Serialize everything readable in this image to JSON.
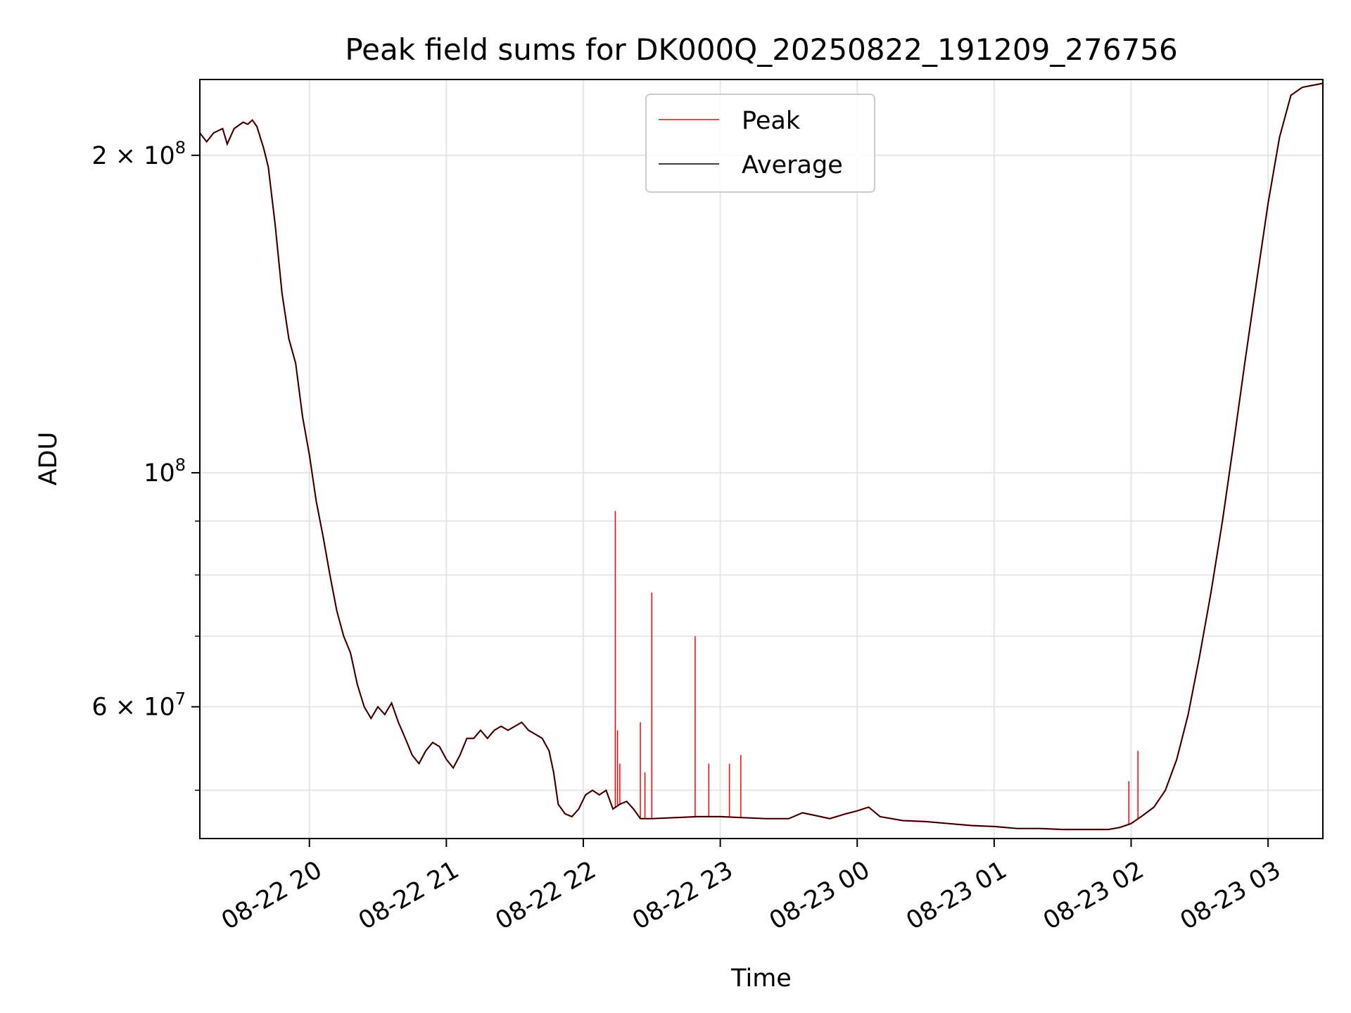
{
  "chart_data": {
    "type": "line",
    "title": "Peak field sums for DK000Q_20250822_191209_276756",
    "xlabel": "Time",
    "ylabel": "ADU",
    "yscale": "log",
    "xlim": [
      "2025-08-22 19:12",
      "2025-08-23 03:24"
    ],
    "ylim": [
      45000000,
      236000000
    ],
    "grid": true,
    "legend_position": "top-center",
    "x_ticks": [
      {
        "label": "08-22 20",
        "t": "2025-08-22 20:00"
      },
      {
        "label": "08-22 21",
        "t": "2025-08-22 21:00"
      },
      {
        "label": "08-22 22",
        "t": "2025-08-22 22:00"
      },
      {
        "label": "08-22 23",
        "t": "2025-08-22 23:00"
      },
      {
        "label": "08-23 00",
        "t": "2025-08-23 00:00"
      },
      {
        "label": "08-23 01",
        "t": "2025-08-23 01:00"
      },
      {
        "label": "08-23 02",
        "t": "2025-08-23 02:00"
      },
      {
        "label": "08-23 03",
        "t": "2025-08-23 03:00"
      }
    ],
    "y_major_ticks": [
      {
        "value": 200000000,
        "mantissa": "2 × 10",
        "exp": "8"
      },
      {
        "value": 100000000,
        "mantissa": "10",
        "exp": "8"
      },
      {
        "value": 60000000,
        "mantissa": "6 × 10",
        "exp": "7"
      }
    ],
    "y_minor_ticks": [
      50000000,
      70000000,
      80000000,
      90000000
    ],
    "series": [
      {
        "name": "Peak",
        "color": "#ff0000",
        "base": "Average",
        "spikes": [
          {
            "t": "2025-08-22 22:14",
            "y": 92000000
          },
          {
            "t": "2025-08-22 22:15",
            "y": 57000000
          },
          {
            "t": "2025-08-22 22:16",
            "y": 53000000
          },
          {
            "t": "2025-08-22 22:25",
            "y": 58000000
          },
          {
            "t": "2025-08-22 22:27",
            "y": 52000000
          },
          {
            "t": "2025-08-22 22:30",
            "y": 77000000
          },
          {
            "t": "2025-08-22 22:49",
            "y": 70000000
          },
          {
            "t": "2025-08-22 22:55",
            "y": 53000000
          },
          {
            "t": "2025-08-22 23:04",
            "y": 53000000
          },
          {
            "t": "2025-08-22 23:09",
            "y": 54000000
          },
          {
            "t": "2025-08-23 01:59",
            "y": 51000000
          },
          {
            "t": "2025-08-23 02:03",
            "y": 54500000
          }
        ]
      },
      {
        "name": "Average",
        "color": "#000000",
        "points": [
          [
            "2025-08-22 19:12",
            210000000
          ],
          [
            "2025-08-22 19:15",
            206000000
          ],
          [
            "2025-08-22 19:18",
            210000000
          ],
          [
            "2025-08-22 19:22",
            212000000
          ],
          [
            "2025-08-22 19:24",
            205000000
          ],
          [
            "2025-08-22 19:27",
            212000000
          ],
          [
            "2025-08-22 19:31",
            215000000
          ],
          [
            "2025-08-22 19:33",
            214000000
          ],
          [
            "2025-08-22 19:35",
            216000000
          ],
          [
            "2025-08-22 19:37",
            213000000
          ],
          [
            "2025-08-22 19:40",
            203000000
          ],
          [
            "2025-08-22 19:42",
            195000000
          ],
          [
            "2025-08-22 19:45",
            172000000
          ],
          [
            "2025-08-22 19:48",
            148000000
          ],
          [
            "2025-08-22 19:51",
            134000000
          ],
          [
            "2025-08-22 19:54",
            127000000
          ],
          [
            "2025-08-22 19:57",
            113000000
          ],
          [
            "2025-08-22 20:00",
            104000000
          ],
          [
            "2025-08-22 20:03",
            94000000
          ],
          [
            "2025-08-22 20:06",
            87000000
          ],
          [
            "2025-08-22 20:09",
            80000000
          ],
          [
            "2025-08-22 20:12",
            74000000
          ],
          [
            "2025-08-22 20:15",
            70000000
          ],
          [
            "2025-08-22 20:18",
            67500000
          ],
          [
            "2025-08-22 20:21",
            63000000
          ],
          [
            "2025-08-22 20:24",
            60000000
          ],
          [
            "2025-08-22 20:27",
            58500000
          ],
          [
            "2025-08-22 20:30",
            60000000
          ],
          [
            "2025-08-22 20:33",
            59000000
          ],
          [
            "2025-08-22 20:36",
            60500000
          ],
          [
            "2025-08-22 20:39",
            58000000
          ],
          [
            "2025-08-22 20:42",
            56000000
          ],
          [
            "2025-08-22 20:45",
            54000000
          ],
          [
            "2025-08-22 20:48",
            53000000
          ],
          [
            "2025-08-22 20:51",
            54500000
          ],
          [
            "2025-08-22 20:54",
            55500000
          ],
          [
            "2025-08-22 20:57",
            55000000
          ],
          [
            "2025-08-22 21:00",
            53500000
          ],
          [
            "2025-08-22 21:03",
            52500000
          ],
          [
            "2025-08-22 21:06",
            54000000
          ],
          [
            "2025-08-22 21:09",
            56000000
          ],
          [
            "2025-08-22 21:12",
            56000000
          ],
          [
            "2025-08-22 21:15",
            57000000
          ],
          [
            "2025-08-22 21:18",
            56000000
          ],
          [
            "2025-08-22 21:21",
            57000000
          ],
          [
            "2025-08-22 21:24",
            57500000
          ],
          [
            "2025-08-22 21:27",
            57000000
          ],
          [
            "2025-08-22 21:30",
            57500000
          ],
          [
            "2025-08-22 21:33",
            58000000
          ],
          [
            "2025-08-22 21:36",
            57000000
          ],
          [
            "2025-08-22 21:39",
            56500000
          ],
          [
            "2025-08-22 21:42",
            56000000
          ],
          [
            "2025-08-22 21:45",
            54500000
          ],
          [
            "2025-08-22 21:47",
            52000000
          ],
          [
            "2025-08-22 21:49",
            48500000
          ],
          [
            "2025-08-22 21:52",
            47500000
          ],
          [
            "2025-08-22 21:55",
            47200000
          ],
          [
            "2025-08-22 21:58",
            48000000
          ],
          [
            "2025-08-22 22:01",
            49500000
          ],
          [
            "2025-08-22 22:04",
            50000000
          ],
          [
            "2025-08-22 22:07",
            49500000
          ],
          [
            "2025-08-22 22:10",
            50000000
          ],
          [
            "2025-08-22 22:13",
            48000000
          ],
          [
            "2025-08-22 22:16",
            48500000
          ],
          [
            "2025-08-22 22:19",
            48800000
          ],
          [
            "2025-08-22 22:22",
            48000000
          ],
          [
            "2025-08-22 22:25",
            47000000
          ],
          [
            "2025-08-22 22:30",
            47000000
          ],
          [
            "2025-08-22 22:40",
            47100000
          ],
          [
            "2025-08-22 22:50",
            47200000
          ],
          [
            "2025-08-22 23:00",
            47200000
          ],
          [
            "2025-08-22 23:10",
            47100000
          ],
          [
            "2025-08-22 23:20",
            47000000
          ],
          [
            "2025-08-22 23:30",
            47000000
          ],
          [
            "2025-08-22 23:36",
            47600000
          ],
          [
            "2025-08-22 23:42",
            47300000
          ],
          [
            "2025-08-22 23:48",
            47000000
          ],
          [
            "2025-08-22 23:55",
            47500000
          ],
          [
            "2025-08-23 00:00",
            47800000
          ],
          [
            "2025-08-23 00:05",
            48200000
          ],
          [
            "2025-08-23 00:10",
            47200000
          ],
          [
            "2025-08-23 00:20",
            46800000
          ],
          [
            "2025-08-23 00:30",
            46700000
          ],
          [
            "2025-08-23 00:40",
            46500000
          ],
          [
            "2025-08-23 00:50",
            46300000
          ],
          [
            "2025-08-23 01:00",
            46200000
          ],
          [
            "2025-08-23 01:10",
            46000000
          ],
          [
            "2025-08-23 01:20",
            46000000
          ],
          [
            "2025-08-23 01:30",
            45900000
          ],
          [
            "2025-08-23 01:40",
            45900000
          ],
          [
            "2025-08-23 01:50",
            45900000
          ],
          [
            "2025-08-23 01:55",
            46100000
          ],
          [
            "2025-08-23 02:00",
            46500000
          ],
          [
            "2025-08-23 02:05",
            47300000
          ],
          [
            "2025-08-23 02:10",
            48200000
          ],
          [
            "2025-08-23 02:15",
            50000000
          ],
          [
            "2025-08-23 02:20",
            53500000
          ],
          [
            "2025-08-23 02:25",
            59000000
          ],
          [
            "2025-08-23 02:30",
            67000000
          ],
          [
            "2025-08-23 02:35",
            77000000
          ],
          [
            "2025-08-23 02:40",
            90000000
          ],
          [
            "2025-08-23 02:45",
            107000000
          ],
          [
            "2025-08-23 02:50",
            128000000
          ],
          [
            "2025-08-23 02:55",
            152000000
          ],
          [
            "2025-08-23 03:00",
            180000000
          ],
          [
            "2025-08-23 03:05",
            208000000
          ],
          [
            "2025-08-23 03:10",
            228000000
          ],
          [
            "2025-08-23 03:15",
            232000000
          ],
          [
            "2025-08-23 03:24",
            234000000
          ]
        ]
      }
    ]
  }
}
